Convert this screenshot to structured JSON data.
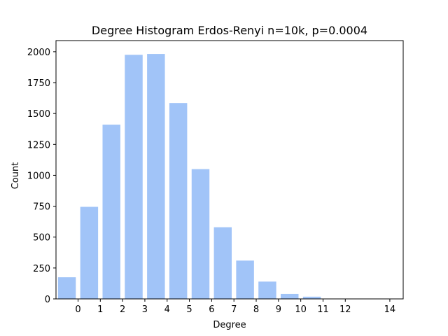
{
  "chart_data": {
    "type": "bar",
    "title": "Degree Histogram Erdos-Renyi n=10k, p=0.0004",
    "xlabel": "Degree",
    "ylabel": "Count",
    "x": [
      0,
      1,
      2,
      3,
      4,
      5,
      6,
      7,
      8,
      9,
      10,
      11,
      12,
      14
    ],
    "values": [
      175,
      745,
      1410,
      1975,
      1982,
      1585,
      1050,
      580,
      310,
      140,
      40,
      18,
      2,
      1
    ],
    "x_tick_labels": [
      "0",
      "1",
      "2",
      "3",
      "4",
      "5",
      "6",
      "7",
      "8",
      "9",
      "10",
      "11",
      "12",
      "14"
    ],
    "y_ticks": [
      0,
      250,
      500,
      750,
      1000,
      1250,
      1500,
      1750,
      2000
    ],
    "y_tick_labels": [
      "0",
      "250",
      "500",
      "750",
      "1000",
      "1250",
      "1500",
      "1750",
      "2000"
    ],
    "ylim": [
      0,
      2090
    ],
    "bar_color": "#a1c4f8",
    "grid": false,
    "legend": false
  }
}
